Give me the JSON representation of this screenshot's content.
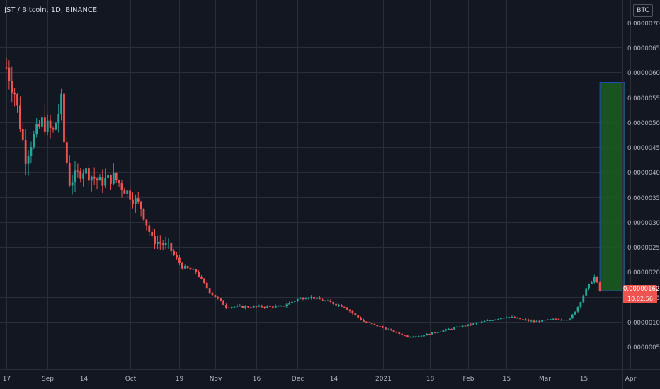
{
  "header": {
    "symbol_title": "JST / Bitcoin, 1D, BINANCE",
    "currency_badge": "BTC"
  },
  "price_tag": {
    "last_price": "0.00000162",
    "countdown": "10:02:56"
  },
  "colors": {
    "background": "#131722",
    "grid": "#2a2e39",
    "up": "#26a69a",
    "down": "#ef5350",
    "target_box_fill": "#1b5e20",
    "target_box_border": "#1e4fbf",
    "last_price_line": "#ef5350"
  },
  "chart_data": {
    "type": "candlestick",
    "y_axis": {
      "min": 3e-07,
      "max": 7.2e-06,
      "ticks": [
        "0.00000050",
        "0.00000100",
        "0.00000150",
        "0.00000200",
        "0.00000250",
        "0.00000300",
        "0.00000350",
        "0.00000400",
        "0.00000450",
        "0.00000500",
        "0.00000550",
        "0.00000600",
        "0.00000650",
        "0.00000700"
      ],
      "tick_values": [
        5e-07,
        1e-06,
        1.5e-06,
        2e-06,
        2.5e-06,
        3e-06,
        3.5e-06,
        4e-06,
        4.5e-06,
        5e-06,
        5.5e-06,
        6e-06,
        6.5e-06,
        7e-06
      ]
    },
    "x_axis": {
      "ticks": [
        {
          "label": "17",
          "date": "2020-08-17"
        },
        {
          "label": "Sep",
          "date": "2020-09-01"
        },
        {
          "label": "14",
          "date": "2020-09-14"
        },
        {
          "label": "Oct",
          "date": "2020-10-01"
        },
        {
          "label": "19",
          "date": "2020-10-19"
        },
        {
          "label": "Nov",
          "date": "2020-11-01"
        },
        {
          "label": "16",
          "date": "2020-11-16"
        },
        {
          "label": "Dec",
          "date": "2020-12-01"
        },
        {
          "label": "14",
          "date": "2020-12-14"
        },
        {
          "label": "2021",
          "date": "2021-01-01"
        },
        {
          "label": "18",
          "date": "2021-01-18"
        },
        {
          "label": "Feb",
          "date": "2021-02-01"
        },
        {
          "label": "15",
          "date": "2021-02-15"
        },
        {
          "label": "Mar",
          "date": "2021-03-01"
        },
        {
          "label": "15",
          "date": "2021-03-15"
        },
        {
          "label": "Apr",
          "date": "2021-04-01"
        }
      ]
    },
    "close_path": [
      [
        "2020-08-17",
        6.1e-06
      ],
      [
        "2020-08-20",
        5.6e-06
      ],
      [
        "2020-08-24",
        4.3e-06
      ],
      [
        "2020-08-26",
        4.6e-06
      ],
      [
        "2020-08-30",
        5e-06
      ],
      [
        "2020-09-03",
        4.8e-06
      ],
      [
        "2020-09-06",
        5.4e-06
      ],
      [
        "2020-09-07",
        4.6e-06
      ],
      [
        "2020-09-09",
        3.8e-06
      ],
      [
        "2020-09-14",
        4.05e-06
      ],
      [
        "2020-09-20",
        3.8e-06
      ],
      [
        "2020-09-25",
        3.9e-06
      ],
      [
        "2020-09-30",
        3.6e-06
      ],
      [
        "2020-10-05",
        3.3e-06
      ],
      [
        "2020-10-09",
        2.65e-06
      ],
      [
        "2020-10-15",
        2.5e-06
      ],
      [
        "2020-10-20",
        2.1e-06
      ],
      [
        "2020-10-25",
        2e-06
      ],
      [
        "2020-10-30",
        1.6e-06
      ],
      [
        "2020-11-05",
        1.3e-06
      ],
      [
        "2020-11-15",
        1.3e-06
      ],
      [
        "2020-11-25",
        1.3e-06
      ],
      [
        "2020-12-01",
        1.45e-06
      ],
      [
        "2020-12-05",
        1.5e-06
      ],
      [
        "2020-12-12",
        1.4e-06
      ],
      [
        "2020-12-18",
        1.3e-06
      ],
      [
        "2020-12-25",
        1e-06
      ],
      [
        "2021-01-01",
        8.8e-07
      ],
      [
        "2021-01-10",
        7e-07
      ],
      [
        "2021-01-15",
        7.2e-07
      ],
      [
        "2021-01-25",
        8.5e-07
      ],
      [
        "2021-02-05",
        9.8e-07
      ],
      [
        "2021-02-15",
        1.1e-06
      ],
      [
        "2021-02-25",
        1e-06
      ],
      [
        "2021-03-05",
        1.05e-06
      ],
      [
        "2021-03-10",
        1.05e-06
      ],
      [
        "2021-03-13",
        1.3e-06
      ],
      [
        "2021-03-16",
        1.65e-06
      ],
      [
        "2021-03-19",
        1.9e-06
      ],
      [
        "2021-03-21",
        1.62e-06
      ]
    ],
    "last_price": 1.62e-06,
    "target_box": {
      "from": "2021-03-21",
      "to": "2021-03-30",
      "low": 1.62e-06,
      "high": 5.8e-06
    }
  }
}
